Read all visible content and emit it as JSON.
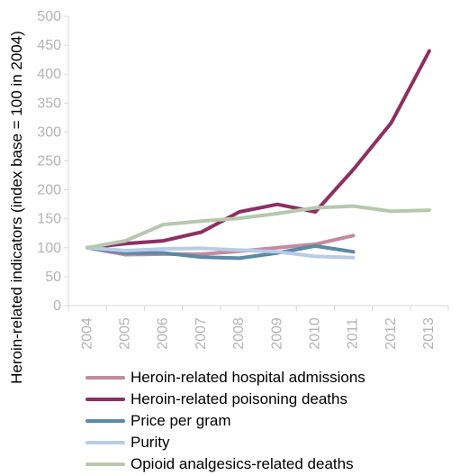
{
  "chart_data": {
    "type": "line",
    "title": "",
    "xlabel": "",
    "ylabel": "Heroin-related indicators (index base = 100 in 2004)",
    "ylim": [
      0,
      500
    ],
    "yticks": [
      0,
      50,
      100,
      150,
      200,
      250,
      300,
      350,
      400,
      450,
      500
    ],
    "x": [
      "2004",
      "2005",
      "2006",
      "2007",
      "2008",
      "2009",
      "2010",
      "2011",
      "2012",
      "2013"
    ],
    "grid": false,
    "legend_position": "bottom",
    "series": [
      {
        "name": "Heroin-related hospital admissions",
        "color": "#c48a9e",
        "values": [
          100,
          88,
          89,
          89,
          94,
          100,
          106,
          121,
          null,
          null
        ]
      },
      {
        "name": "Heroin-related poisoning deaths",
        "color": "#8c3063",
        "values": [
          100,
          107,
          112,
          127,
          162,
          175,
          162,
          235,
          316,
          440
        ]
      },
      {
        "name": "Price per gram",
        "color": "#5b89a6",
        "values": [
          100,
          91,
          91,
          84,
          82,
          91,
          103,
          93,
          null,
          null
        ]
      },
      {
        "name": "Purity",
        "color": "#b8cce4",
        "values": [
          100,
          95,
          98,
          99,
          96,
          93,
          85,
          83,
          null,
          null
        ]
      },
      {
        "name": "Opioid analgesics-related deaths",
        "color": "#b6c8ae",
        "values": [
          100,
          112,
          140,
          146,
          151,
          159,
          169,
          172,
          163,
          165
        ]
      }
    ]
  }
}
